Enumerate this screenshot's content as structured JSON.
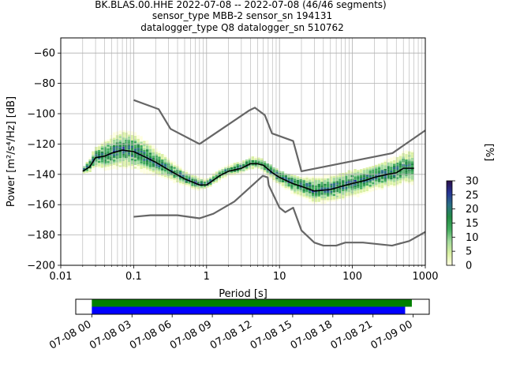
{
  "header": {
    "line1": "BK.BLAS.00.HHE   2022-07-08 -- 2022-07-08  (46/46 segments)",
    "line2": "sensor_type MBB-2 sensor_sn 194131",
    "line3": "datalogger_type Q8 datalogger_sn 510762"
  },
  "chart_data": [
    {
      "type": "heatmap",
      "title": "BK.BLAS.00.HHE   2022-07-08 -- 2022-07-08  (46/46 segments)",
      "xlabel": "Period [s]",
      "ylabel": "Power [m²/s⁴/Hz] [dB]",
      "xscale": "log",
      "xlim": [
        0.01,
        1000
      ],
      "ylim": [
        -200,
        -50
      ],
      "x_ticks": [
        0.01,
        0.1,
        1,
        10,
        100,
        1000
      ],
      "x_tick_labels": [
        "0.01",
        "0.1",
        "1",
        "10",
        "100",
        "1000"
      ],
      "y_ticks": [
        -200,
        -180,
        -160,
        -140,
        -120,
        -100,
        -80,
        -60
      ],
      "y_tick_labels": [
        "−200",
        "−180",
        "−160",
        "−140",
        "−120",
        "−100",
        "−80",
        "−60"
      ],
      "grid": true,
      "colorbar": {
        "label": "[%]",
        "ticks": [
          0,
          5,
          10,
          15,
          20,
          25,
          30
        ],
        "tick_labels": [
          "0",
          "5",
          "10",
          "15",
          "20",
          "25",
          "30"
        ],
        "range": [
          0,
          30
        ],
        "colors": [
          "#ffffe0",
          "#d9f0a3",
          "#a1d99b",
          "#41ab5d",
          "#238b45",
          "#2a6f84",
          "#253494",
          "#2c0f4a"
        ]
      },
      "psd_band": [
        {
          "x": 0.02,
          "lo": -142,
          "hi": -136
        },
        {
          "x": 0.025,
          "lo": -141,
          "hi": -130
        },
        {
          "x": 0.03,
          "lo": -140,
          "hi": -123
        },
        {
          "x": 0.04,
          "lo": -139,
          "hi": -116
        },
        {
          "x": 0.05,
          "lo": -138,
          "hi": -111
        },
        {
          "x": 0.07,
          "lo": -136,
          "hi": -106
        },
        {
          "x": 0.1,
          "lo": -137,
          "hi": -108
        },
        {
          "x": 0.15,
          "lo": -140,
          "hi": -114
        },
        {
          "x": 0.2,
          "lo": -143,
          "hi": -121
        },
        {
          "x": 0.3,
          "lo": -146,
          "hi": -129
        },
        {
          "x": 0.5,
          "lo": -149,
          "hi": -136
        },
        {
          "x": 0.8,
          "lo": -151,
          "hi": -141
        },
        {
          "x": 1,
          "lo": -149,
          "hi": -141
        },
        {
          "x": 1.5,
          "lo": -146,
          "hi": -137
        },
        {
          "x": 2,
          "lo": -143,
          "hi": -134
        },
        {
          "x": 3,
          "lo": -141,
          "hi": -131
        },
        {
          "x": 4,
          "lo": -139,
          "hi": -129
        },
        {
          "x": 5,
          "lo": -139,
          "hi": -129
        },
        {
          "x": 7,
          "lo": -145,
          "hi": -133
        },
        {
          "x": 10,
          "lo": -152,
          "hi": -138
        },
        {
          "x": 15,
          "lo": -158,
          "hi": -141
        },
        {
          "x": 20,
          "lo": -160,
          "hi": -142
        },
        {
          "x": 30,
          "lo": -163,
          "hi": -142
        },
        {
          "x": 50,
          "lo": -163,
          "hi": -141
        },
        {
          "x": 100,
          "lo": -161,
          "hi": -138
        },
        {
          "x": 200,
          "lo": -157,
          "hi": -135
        },
        {
          "x": 300,
          "lo": -154,
          "hi": -131
        },
        {
          "x": 500,
          "lo": -150,
          "hi": -125
        },
        {
          "x": 700,
          "lo": -148,
          "hi": -120
        }
      ],
      "series": [
        {
          "name": "",
          "role": "median",
          "color": "#000000",
          "points": [
            [
              0.02,
              -138
            ],
            [
              0.025,
              -135
            ],
            [
              0.03,
              -129
            ],
            [
              0.04,
              -128
            ],
            [
              0.05,
              -126
            ],
            [
              0.07,
              -124
            ],
            [
              0.1,
              -125
            ],
            [
              0.15,
              -129
            ],
            [
              0.2,
              -132
            ],
            [
              0.3,
              -137
            ],
            [
              0.5,
              -143
            ],
            [
              0.8,
              -147
            ],
            [
              1,
              -147
            ],
            [
              1.5,
              -141
            ],
            [
              2,
              -138
            ],
            [
              3,
              -136
            ],
            [
              4,
              -133
            ],
            [
              5,
              -133
            ],
            [
              6,
              -134
            ],
            [
              8,
              -139
            ],
            [
              10,
              -142
            ],
            [
              15,
              -146
            ],
            [
              20,
              -148
            ],
            [
              30,
              -151
            ],
            [
              50,
              -150
            ],
            [
              70,
              -148
            ],
            [
              100,
              -146
            ],
            [
              150,
              -144
            ],
            [
              200,
              -142
            ],
            [
              300,
              -140
            ],
            [
              400,
              -139
            ],
            [
              500,
              -136
            ],
            [
              700,
              -136
            ]
          ]
        },
        {
          "name": "",
          "role": "noise-model-high",
          "color": "#666666",
          "points": [
            [
              0.1,
              -91
            ],
            [
              0.22,
              -97
            ],
            [
              0.32,
              -110
            ],
            [
              0.8,
              -120
            ],
            [
              3.8,
              -98
            ],
            [
              4.6,
              -96
            ],
            [
              6.3,
              -101
            ],
            [
              7.9,
              -113
            ],
            [
              15.4,
              -118
            ],
            [
              20,
              -138
            ],
            [
              354.8,
              -126
            ],
            [
              1000,
              -111
            ]
          ]
        },
        {
          "name": "",
          "role": "noise-model-low",
          "color": "#666666",
          "points": [
            [
              0.1,
              -168
            ],
            [
              0.17,
              -167
            ],
            [
              0.4,
              -167
            ],
            [
              0.8,
              -169
            ],
            [
              1.24,
              -166
            ],
            [
              2.4,
              -158
            ],
            [
              4.3,
              -147
            ],
            [
              5.9,
              -141
            ],
            [
              6.9,
              -142
            ],
            [
              7.1,
              -147
            ],
            [
              10,
              -162
            ],
            [
              12,
              -165
            ],
            [
              15.4,
              -162
            ],
            [
              20,
              -177
            ],
            [
              30,
              -185
            ],
            [
              40,
              -187
            ],
            [
              60,
              -187
            ],
            [
              80,
              -185
            ],
            [
              100,
              -185
            ],
            [
              140,
              -185
            ],
            [
              350,
              -187
            ],
            [
              600,
              -184
            ],
            [
              1000,
              -178
            ]
          ]
        }
      ]
    },
    {
      "type": "bar",
      "title": "",
      "x_tick_labels": [
        "07-08 00",
        "07-08 03",
        "07-08 06",
        "07-08 09",
        "07-08 12",
        "07-08 15",
        "07-08 18",
        "07-08 21",
        "07-09 00"
      ],
      "xlim_hours": [
        -1.2,
        25.2
      ],
      "bars": [
        {
          "role": "data-availability",
          "color": "#008000",
          "start_hour": 0,
          "end_hour": 23.9
        },
        {
          "role": "psd-segments",
          "color": "#0000ff",
          "start_hour": 0,
          "end_hour": 23.4
        }
      ]
    }
  ]
}
